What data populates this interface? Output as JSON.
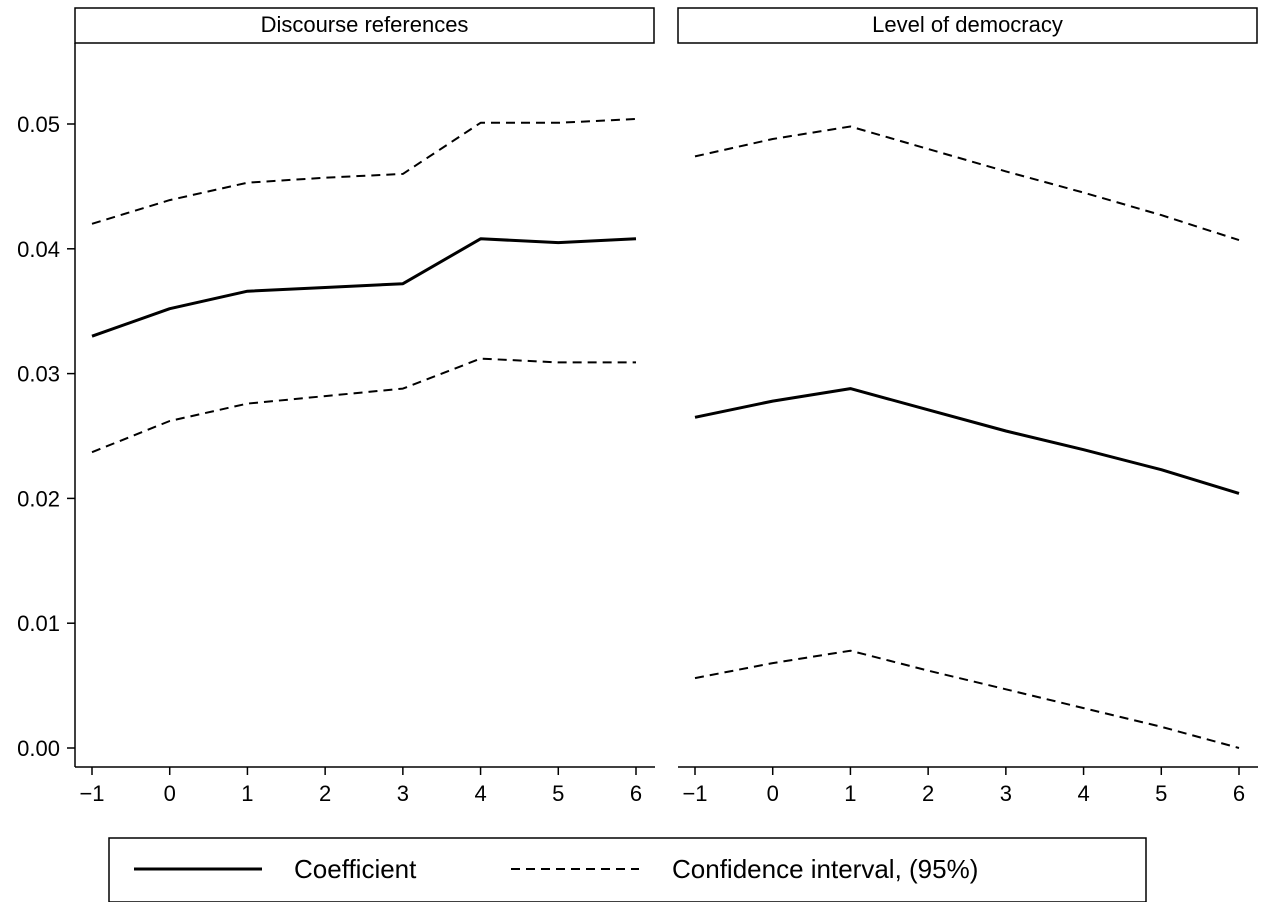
{
  "chart_data": [
    {
      "type": "line",
      "title": "Discourse references",
      "xlabel": "",
      "ylabel": "",
      "x": [
        -1,
        0,
        1,
        2,
        3,
        4,
        5,
        6
      ],
      "xticks": [
        "−1",
        "0",
        "1",
        "2",
        "3",
        "4",
        "5",
        "6"
      ],
      "ylim": [
        0.0,
        0.05
      ],
      "yticks": [
        "0.00",
        "0.01",
        "0.02",
        "0.03",
        "0.04",
        "0.05"
      ],
      "series": [
        {
          "name": "Coefficient",
          "style": "solid",
          "values": [
            0.033,
            0.0352,
            0.0366,
            0.0369,
            0.0372,
            0.0408,
            0.0405,
            0.0408
          ]
        },
        {
          "name": "Confidence interval, (95%)",
          "style": "dashed",
          "values": [
            0.042,
            0.0439,
            0.0453,
            0.0457,
            0.046,
            0.0501,
            0.0501,
            0.0504
          ]
        },
        {
          "name": "Confidence interval, (95%)",
          "style": "dashed",
          "values": [
            0.0237,
            0.0262,
            0.0276,
            0.0282,
            0.0288,
            0.0312,
            0.0309,
            0.0309
          ]
        }
      ]
    },
    {
      "type": "line",
      "title": "Level of democracy",
      "xlabel": "",
      "ylabel": "",
      "x": [
        -1,
        0,
        1,
        2,
        3,
        4,
        5,
        6
      ],
      "xticks": [
        "−1",
        "0",
        "1",
        "2",
        "3",
        "4",
        "5",
        "6"
      ],
      "ylim": [
        0.0,
        0.05
      ],
      "yticks": [
        "0.00",
        "0.01",
        "0.02",
        "0.03",
        "0.04",
        "0.05"
      ],
      "series": [
        {
          "name": "Coefficient",
          "style": "solid",
          "values": [
            0.0265,
            0.0278,
            0.0288,
            0.0271,
            0.0254,
            0.0239,
            0.0223,
            0.0204
          ]
        },
        {
          "name": "Confidence interval, (95%)",
          "style": "dashed",
          "values": [
            0.0474,
            0.0488,
            0.0498,
            0.048,
            0.0462,
            0.0445,
            0.0427,
            0.0407
          ]
        },
        {
          "name": "Confidence interval, (95%)",
          "style": "dashed",
          "values": [
            0.0056,
            0.0068,
            0.0078,
            0.0062,
            0.0047,
            0.0032,
            0.0017,
            0.0
          ]
        }
      ]
    }
  ],
  "legend": {
    "placement": "bottom",
    "items": [
      {
        "label": "Coefficient",
        "style": "solid"
      },
      {
        "label": "Confidence interval, (95%)",
        "style": "dashed"
      }
    ]
  },
  "colors": {
    "line": "#000000",
    "background": "#ffffff"
  }
}
